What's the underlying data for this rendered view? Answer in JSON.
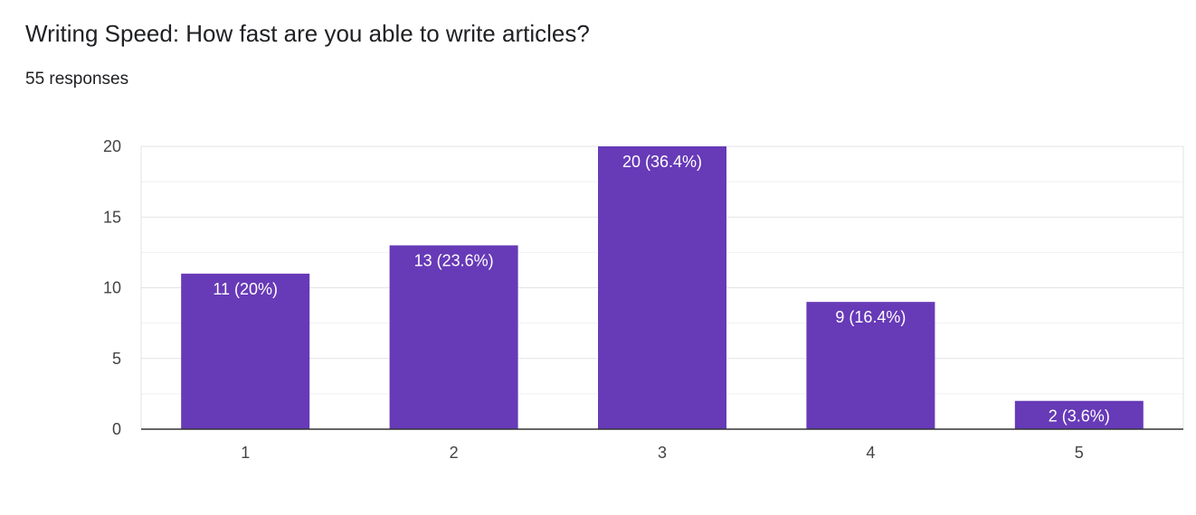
{
  "question": {
    "title": "Writing Speed: How fast are you able to write articles?",
    "responses": "55 responses"
  },
  "colors": {
    "bar": "#673ab7",
    "grid_major": "#e3e3e3",
    "grid_minor": "#f1f1f1",
    "axis": "#333333"
  },
  "chart_data": {
    "type": "bar",
    "title": "Writing Speed: How fast are you able to write articles?",
    "categories": [
      "1",
      "2",
      "3",
      "4",
      "5"
    ],
    "values": [
      11,
      13,
      20,
      9,
      2
    ],
    "data_labels": [
      "11 (20%)",
      "13 (23.6%)",
      "20 (36.4%)",
      "9 (16.4%)",
      "2 (3.6%)"
    ],
    "y_ticks": [
      0,
      5,
      10,
      15,
      20
    ],
    "ylim": [
      0,
      20
    ],
    "xlabel": "",
    "ylabel": "",
    "grid": true
  }
}
